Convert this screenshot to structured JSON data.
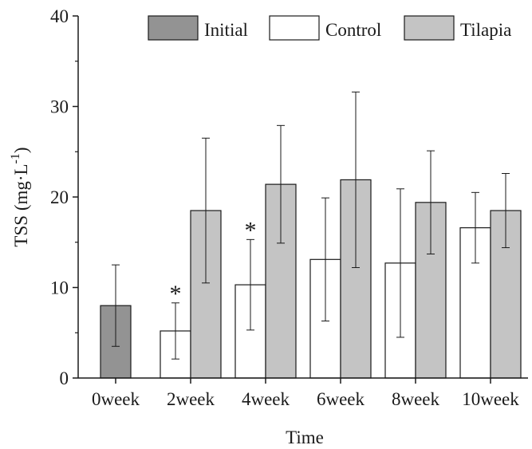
{
  "chart_data": {
    "type": "bar",
    "title": "",
    "xlabel": "Time",
    "ylabel": "TSS (mg·L⁻¹)",
    "ylabel_main": "TSS (mg·L",
    "ylabel_sup": "-1",
    "ylabel_close": ")",
    "ylim": [
      0,
      40
    ],
    "yticks": [
      0,
      10,
      20,
      30,
      40
    ],
    "ytick_labels": [
      "0",
      "10",
      "20",
      "30",
      "40"
    ],
    "categories": [
      "0week",
      "2week",
      "4week",
      "6week",
      "8week",
      "10week"
    ],
    "series": [
      {
        "name": "Initial",
        "color": "#939393",
        "values": [
          8.0,
          null,
          null,
          null,
          null,
          null
        ],
        "error": [
          4.5,
          null,
          null,
          null,
          null,
          null
        ]
      },
      {
        "name": "Control",
        "color": "#ffffff",
        "values": [
          null,
          5.2,
          10.3,
          13.1,
          12.7,
          16.6
        ],
        "error": [
          null,
          3.1,
          5.0,
          6.8,
          8.2,
          3.9
        ]
      },
      {
        "name": "Tilapia",
        "color": "#c4c4c4",
        "values": [
          null,
          18.5,
          21.4,
          21.9,
          19.4,
          18.5
        ],
        "error": [
          null,
          8.0,
          6.5,
          9.7,
          5.7,
          4.1
        ]
      }
    ],
    "annotations": [
      {
        "text": "*",
        "category_index": 1,
        "series": "Control"
      },
      {
        "text": "*",
        "category_index": 2,
        "series": "Control"
      }
    ],
    "legend": {
      "position": "top-right",
      "items": [
        "Initial",
        "Control",
        "Tilapia"
      ]
    },
    "grid": false
  }
}
